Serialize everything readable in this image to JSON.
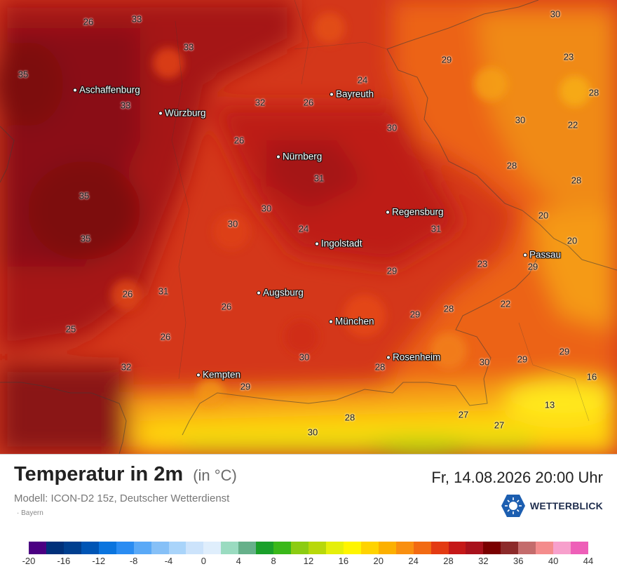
{
  "map": {
    "cities": [
      {
        "name": "Aschaffenburg"
      },
      {
        "name": "Würzburg"
      },
      {
        "name": "Bayreuth"
      },
      {
        "name": "Nürnberg"
      },
      {
        "name": "Regensburg"
      },
      {
        "name": "Ingolstadt"
      },
      {
        "name": "Passau"
      },
      {
        "name": "Augsburg"
      },
      {
        "name": "München"
      },
      {
        "name": "Rosenheim"
      },
      {
        "name": "Kempten"
      }
    ],
    "values": [
      "26",
      "33",
      "33",
      "35",
      "33",
      "32",
      "26",
      "24",
      "29",
      "30",
      "23",
      "28",
      "30",
      "22",
      "30",
      "28",
      "26",
      "28",
      "31",
      "35",
      "30",
      "30",
      "24",
      "31",
      "35",
      "26",
      "31",
      "29",
      "20",
      "20",
      "23",
      "29",
      "26",
      "29",
      "28",
      "22",
      "25",
      "26",
      "30",
      "28",
      "30",
      "29",
      "29",
      "32",
      "29",
      "16",
      "13",
      "28",
      "30",
      "27",
      "27"
    ]
  },
  "footer": {
    "title": "Temperatur in 2m",
    "unit": "(in °C)",
    "datetime": "Fr, 14.08.2026 20:00 Uhr",
    "model": "Modell: ICON-D2 15z, Deutscher Wetterdienst",
    "region": "· Bayern",
    "logo_text": "WETTERBLICK",
    "logo_icon": "sun-snowflake-hexagon-icon"
  },
  "legend": {
    "colors": [
      "#4b0082",
      "#00307a",
      "#003f8f",
      "#0055b5",
      "#0a74de",
      "#2a8cf2",
      "#5aa9f7",
      "#86c0f7",
      "#a9d4fa",
      "#cce3fb",
      "#dfeefc",
      "#9adbc0",
      "#66b08a",
      "#1aa02a",
      "#3ab81a",
      "#8ccc12",
      "#b8d80a",
      "#e5ef0a",
      "#fff500",
      "#ffd300",
      "#fcb000",
      "#f98f10",
      "#f26a12",
      "#e33a12",
      "#c51818",
      "#a8111c",
      "#7a0000",
      "#8c2a2a",
      "#c46c6c",
      "#f48c8c",
      "#f7a0cc",
      "#ee5fb8"
    ],
    "tick_labels": [
      "-20",
      "-16",
      "-12",
      "-8",
      "-4",
      "0",
      "4",
      "8",
      "12",
      "16",
      "20",
      "24",
      "28",
      "32",
      "36",
      "40",
      "44"
    ]
  }
}
